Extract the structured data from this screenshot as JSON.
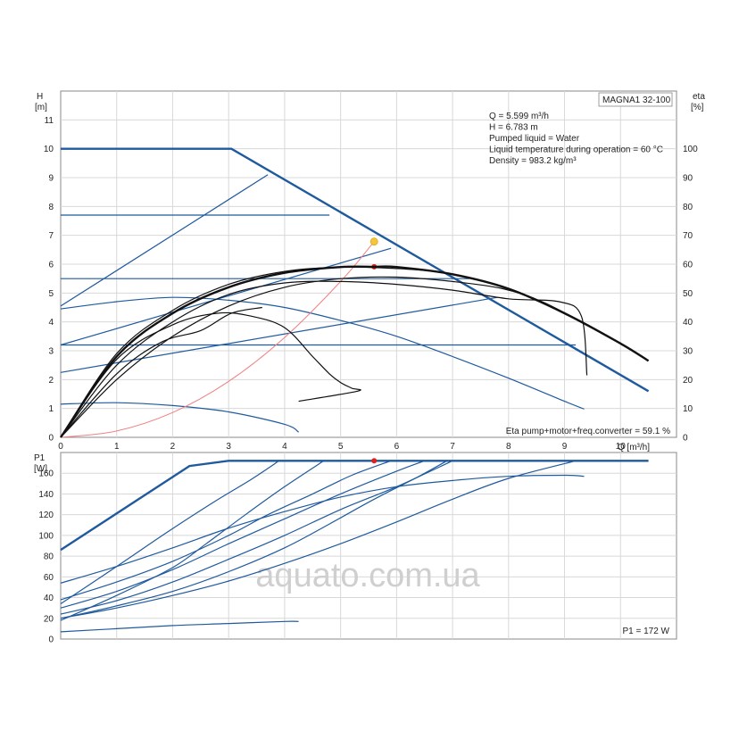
{
  "chart_data": [
    {
      "type": "line",
      "subtitle": "MAGNA1 32-100",
      "ylabel_left": "H",
      "ylabel_left_unit": "[m]",
      "ylabel_right": "eta",
      "ylabel_right_unit": "[%]",
      "xlabel": "Q [m³/h]",
      "xlim": [
        0,
        11
      ],
      "ylim": [
        0,
        12
      ],
      "eta_lim": [
        0,
        120
      ],
      "x_ticks": [
        0,
        1,
        2,
        3,
        4,
        5,
        6,
        7,
        8,
        9,
        10
      ],
      "y_ticks": [
        0,
        1,
        2,
        3,
        4,
        5,
        6,
        7,
        8,
        9,
        10,
        11
      ],
      "eta_ticks": [
        0,
        10,
        20,
        30,
        40,
        50,
        60,
        70,
        80,
        90,
        100
      ],
      "grid": true,
      "info_lines": [
        "Q = 5.599 m³/h",
        "H = 6.783 m",
        "Pumped liquid = Water",
        "Liquid temperature during operation = 60 °C",
        "Density = 983.2 kg/m³"
      ],
      "efficiency_note": "Eta pump+motor+freq.converter = 59.1 %",
      "duty_point": {
        "q": 5.599,
        "h": 6.783
      },
      "eta_point": {
        "q": 5.599,
        "eta": 59.1
      },
      "colors": {
        "curve": "#1f5a9e",
        "eta": "#111111",
        "system": "#f08080",
        "duty": "#f5c542",
        "marker": "#e02020"
      },
      "h_curves": [
        {
          "kind": "max",
          "points": [
            [
              0,
              10
            ],
            [
              3.05,
              10
            ],
            [
              10.5,
              1.6
            ]
          ]
        },
        {
          "kind": "proportional",
          "points": [
            [
              0,
              4.55
            ],
            [
              3.7,
              9.1
            ]
          ]
        },
        {
          "kind": "proportional",
          "points": [
            [
              0,
              3.2
            ],
            [
              5.9,
              6.55
            ]
          ]
        },
        {
          "kind": "proportional",
          "points": [
            [
              0,
              2.25
            ],
            [
              7.8,
              4.85
            ]
          ]
        },
        {
          "kind": "constant",
          "points": [
            [
              0,
              7.7
            ],
            [
              4.8,
              7.7
            ]
          ]
        },
        {
          "kind": "constant",
          "points": [
            [
              0,
              5.5
            ],
            [
              7.3,
              5.5
            ]
          ]
        },
        {
          "kind": "constant",
          "points": [
            [
              0,
              3.2
            ],
            [
              9.2,
              3.2
            ]
          ]
        },
        {
          "kind": "speed",
          "points": [
            [
              0,
              4.45
            ],
            [
              1,
              4.7
            ],
            [
              2,
              4.85
            ],
            [
              3,
              4.75
            ],
            [
              4,
              4.5
            ],
            [
              5,
              4.05
            ],
            [
              6,
              3.5
            ],
            [
              7,
              2.8
            ],
            [
              8,
              2.05
            ],
            [
              9,
              1.25
            ],
            [
              9.35,
              0.98
            ]
          ]
        },
        {
          "kind": "speed",
          "points": [
            [
              0,
              1.15
            ],
            [
              1,
              1.2
            ],
            [
              2,
              1.1
            ],
            [
              3,
              0.88
            ],
            [
              4,
              0.45
            ],
            [
              4.25,
              0.18
            ]
          ]
        }
      ],
      "eta_curves": [
        {
          "points": [
            [
              0,
              0
            ],
            [
              1,
              28
            ],
            [
              2,
              43
            ],
            [
              3,
              52
            ],
            [
              4,
              57
            ],
            [
              5,
              59
            ],
            [
              5.6,
              59.1
            ],
            [
              6,
              59
            ],
            [
              7,
              56.5
            ],
            [
              8,
              51.5
            ],
            [
              9,
              43
            ],
            [
              10,
              32.5
            ],
            [
              10.5,
              26.5
            ]
          ]
        },
        {
          "points": [
            [
              0,
              0
            ],
            [
              1,
              29
            ],
            [
              2,
              44
            ],
            [
              3,
              53
            ],
            [
              4,
              57.5
            ],
            [
              5,
              59
            ],
            [
              6,
              58.5
            ],
            [
              6.7,
              57.5
            ]
          ]
        },
        {
          "points": [
            [
              0,
              0
            ],
            [
              1,
              25
            ],
            [
              2,
              40
            ],
            [
              3,
              49.5
            ],
            [
              4,
              53.5
            ],
            [
              5,
              54
            ],
            [
              6,
              53
            ],
            [
              7,
              51
            ],
            [
              8,
              48
            ],
            [
              8.9,
              47
            ],
            [
              9.3,
              42
            ],
            [
              9.4,
              21.5
            ]
          ]
        },
        {
          "points": [
            [
              0,
              0
            ],
            [
              1,
              20
            ],
            [
              2,
              35
            ],
            [
              3,
              45.5
            ],
            [
              4,
              52
            ],
            [
              5,
              55
            ],
            [
              6,
              55.5
            ],
            [
              7,
              54
            ],
            [
              7.9,
              51.5
            ],
            [
              8.6,
              47
            ],
            [
              9.4,
              39
            ]
          ]
        },
        {
          "points": [
            [
              0,
              0
            ],
            [
              1,
              27
            ],
            [
              2,
              39
            ],
            [
              2.8,
              43
            ],
            [
              3.4,
              42
            ],
            [
              4,
              38
            ],
            [
              4.5,
              28
            ],
            [
              4.8,
              22
            ],
            [
              5,
              19
            ],
            [
              5.2,
              17
            ],
            [
              5.3,
              16
            ],
            [
              4.25,
              12.5
            ]
          ]
        },
        {
          "points": [
            [
              0,
              0
            ],
            [
              1,
              22
            ],
            [
              1.8,
              33
            ],
            [
              2.5,
              37
            ],
            [
              3.05,
              43
            ],
            [
              3.6,
              45
            ]
          ]
        }
      ],
      "system_curve": {
        "points": [
          [
            0,
            0
          ],
          [
            1,
            0.22
          ],
          [
            2,
            0.86
          ],
          [
            3,
            1.94
          ],
          [
            4,
            3.46
          ],
          [
            5,
            5.4
          ],
          [
            5.599,
            6.783
          ]
        ]
      }
    },
    {
      "type": "line",
      "ylabel": "P1",
      "ylabel_unit": "[W]",
      "xlim": [
        0,
        11
      ],
      "ylim": [
        0,
        180
      ],
      "y_ticks": [
        0,
        20,
        40,
        60,
        80,
        100,
        120,
        140,
        160
      ],
      "grid": true,
      "power_note": "P1 = 172 W",
      "power_point": {
        "q": 5.599,
        "p1": 172
      },
      "watermark": "aquato.com.ua",
      "p_curves": [
        {
          "kind": "max",
          "points": [
            [
              0,
              86
            ],
            [
              2.3,
              167
            ],
            [
              3,
              172
            ],
            [
              10.5,
              172
            ]
          ]
        },
        {
          "kind": "speed",
          "points": [
            [
              0,
              54
            ],
            [
              1,
              70
            ],
            [
              2,
              88
            ],
            [
              3,
              107
            ],
            [
              4,
              123
            ],
            [
              5,
              137
            ],
            [
              6,
              147
            ],
            [
              7,
              153
            ],
            [
              8,
              157
            ],
            [
              9,
              158
            ],
            [
              9.35,
              157
            ]
          ]
        },
        {
          "kind": "speed",
          "points": [
            [
              0,
              7
            ],
            [
              1,
              10
            ],
            [
              2,
              13
            ],
            [
              3,
              15
            ],
            [
              4,
              17
            ],
            [
              4.25,
              17
            ]
          ]
        },
        {
          "kind": "proportional",
          "points": [
            [
              0,
              38
            ],
            [
              1,
              55
            ],
            [
              2,
              75
            ],
            [
              3,
              100
            ],
            [
              3.7,
              120
            ],
            [
              4.5,
              140
            ],
            [
              5.2,
              158
            ],
            [
              5.9,
              172
            ]
          ]
        },
        {
          "kind": "proportional",
          "points": [
            [
              0,
              24
            ],
            [
              1,
              37
            ],
            [
              2,
              55
            ],
            [
              3,
              77
            ],
            [
              4,
              100
            ],
            [
              5,
              125
            ],
            [
              6,
              147
            ],
            [
              7,
              172
            ]
          ]
        },
        {
          "kind": "proportional",
          "points": [
            [
              0,
              20
            ],
            [
              1,
              30
            ],
            [
              2,
              42
            ],
            [
              3,
              56
            ],
            [
              4,
              73
            ],
            [
              5,
              92
            ],
            [
              6,
              113
            ],
            [
              7,
              135
            ],
            [
              8,
              155
            ],
            [
              9.2,
              172
            ]
          ]
        },
        {
          "kind": "constant",
          "points": [
            [
              0,
              20
            ],
            [
              1,
              32
            ],
            [
              2,
              46
            ],
            [
              3,
              65
            ],
            [
              4,
              88
            ],
            [
              4.8,
              111
            ],
            [
              5.6,
              135
            ],
            [
              6.4,
              157
            ],
            [
              6.9,
              172
            ]
          ]
        },
        {
          "kind": "constant",
          "points": [
            [
              0,
              30
            ],
            [
              1,
              46
            ],
            [
              2,
              67
            ],
            [
              3,
              92
            ],
            [
              4,
              116
            ],
            [
              5,
              140
            ],
            [
              6,
              162
            ],
            [
              6.5,
              172
            ]
          ]
        },
        {
          "kind": "constant",
          "points": [
            [
              0,
              18
            ],
            [
              1,
              42
            ],
            [
              2,
              69
            ],
            [
              2.6,
              92
            ],
            [
              3.3,
              120
            ],
            [
              4,
              147
            ],
            [
              4.7,
              172
            ]
          ]
        },
        {
          "kind": "speed",
          "points": [
            [
              0,
              34
            ],
            [
              1,
              70
            ],
            [
              1.9,
              103
            ],
            [
              2.7,
              131
            ],
            [
              3.4,
              154
            ],
            [
              3.9,
              172
            ]
          ]
        }
      ]
    }
  ]
}
